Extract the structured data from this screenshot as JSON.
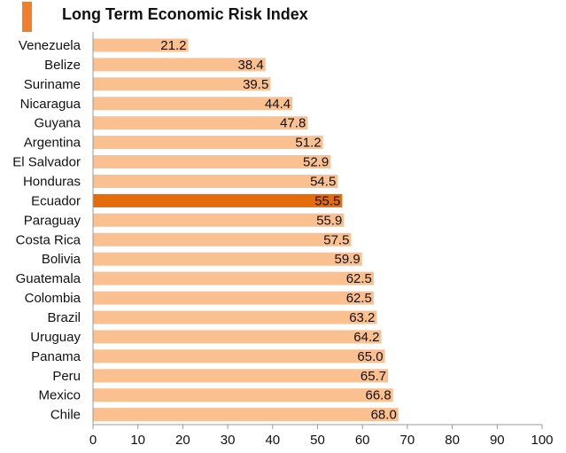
{
  "chart_data": {
    "type": "bar",
    "orientation": "horizontal",
    "title": "Long Term Economic Risk Index",
    "categories": [
      "Venezuela",
      "Belize",
      "Suriname",
      "Nicaragua",
      "Guyana",
      "Argentina",
      "El Salvador",
      "Honduras",
      "Ecuador",
      "Paraguay",
      "Costa Rica",
      "Bolivia",
      "Guatemala",
      "Colombia",
      "Brazil",
      "Uruguay",
      "Panama",
      "Peru",
      "Mexico",
      "Chile"
    ],
    "values": [
      21.2,
      38.4,
      39.5,
      44.4,
      47.8,
      51.2,
      52.9,
      54.5,
      55.5,
      55.9,
      57.5,
      59.9,
      62.5,
      62.5,
      63.2,
      64.2,
      65.0,
      65.7,
      66.8,
      68.0
    ],
    "value_labels": [
      "21.2",
      "38.4",
      "39.5",
      "44.4",
      "47.8",
      "51.2",
      "52.9",
      "54.5",
      "55.5",
      "55.9",
      "57.5",
      "59.9",
      "62.5",
      "62.5",
      "63.2",
      "64.2",
      "65.0",
      "65.7",
      "66.8",
      "68.0"
    ],
    "highlight": "Ecuador",
    "xlim": [
      0,
      100
    ],
    "xticks": [
      "0",
      "10",
      "20",
      "30",
      "40",
      "50",
      "60",
      "70",
      "80",
      "90",
      "100"
    ],
    "xlabel": "",
    "ylabel": "",
    "grid": false,
    "colors": {
      "bar": "#FAC090",
      "highlight": "#E46C0A",
      "title_marker": "#F07F2B",
      "axis": "#999999"
    }
  }
}
